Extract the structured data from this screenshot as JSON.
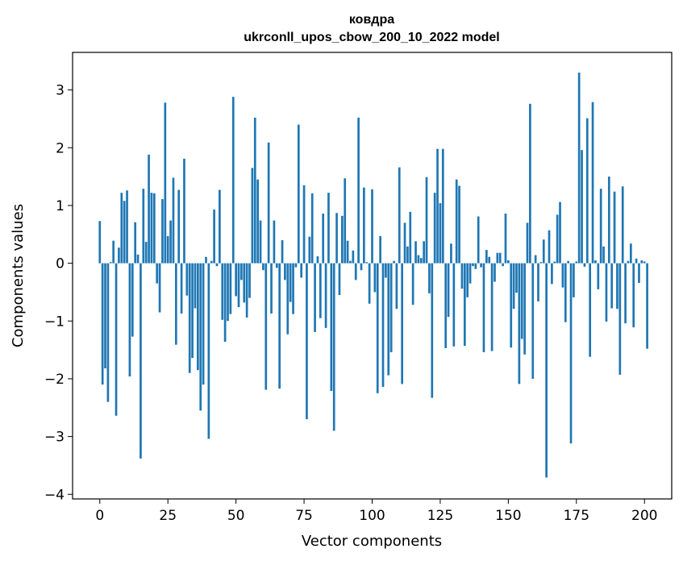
{
  "chart_data": {
    "type": "bar",
    "title": "ковдра",
    "subtitle": "ukrconll_upos_cbow_200_10_2022 model",
    "xlabel": "Vector components",
    "ylabel": "Components values",
    "xlim": [
      -10,
      210
    ],
    "ylim": [
      -4.08,
      3.65
    ],
    "x_ticks": [
      0,
      25,
      50,
      75,
      100,
      125,
      150,
      175,
      200
    ],
    "y_ticks": [
      -4,
      -3,
      -2,
      -1,
      0,
      1,
      2,
      3
    ],
    "y_tick_labels": [
      "−4",
      "−3",
      "−2",
      "−1",
      "0",
      "1",
      "2",
      "3"
    ],
    "bar_color": "#1f77b4",
    "grid": false,
    "values": [
      0.73,
      -2.1,
      -1.82,
      -2.4,
      0.02,
      0.39,
      -2.64,
      0.27,
      1.22,
      1.08,
      1.26,
      -1.96,
      -1.27,
      0.71,
      0.15,
      -3.38,
      1.29,
      0.37,
      1.88,
      1.22,
      1.21,
      -0.35,
      -0.85,
      1.11,
      2.78,
      0.47,
      0.74,
      1.48,
      -1.41,
      1.27,
      -0.87,
      1.81,
      -0.56,
      -1.9,
      -1.64,
      -0.78,
      -1.85,
      -2.55,
      -2.1,
      0.11,
      -3.04,
      0.04,
      0.93,
      -0.05,
      1.27,
      -0.98,
      -1.36,
      -1.0,
      -0.88,
      2.88,
      -0.57,
      -0.76,
      -0.29,
      -0.68,
      -0.94,
      -0.6,
      1.65,
      2.52,
      1.45,
      0.74,
      -0.12,
      -2.19,
      2.09,
      -0.87,
      0.74,
      -0.08,
      -2.17,
      0.4,
      -0.29,
      -1.23,
      -0.67,
      -0.88,
      -0.07,
      2.4,
      -0.25,
      1.35,
      -2.7,
      0.46,
      1.21,
      -1.19,
      0.12,
      -0.95,
      0.86,
      -1.12,
      1.22,
      -2.21,
      -2.9,
      0.87,
      -0.55,
      0.82,
      1.47,
      0.39,
      0.04,
      0.22,
      -0.29,
      2.52,
      -0.12,
      1.31,
      0.02,
      -0.7,
      1.28,
      -0.5,
      -2.25,
      0.47,
      -2.14,
      -0.25,
      -1.94,
      -1.54,
      0.04,
      -0.79,
      1.66,
      -2.09,
      0.7,
      0.29,
      0.89,
      -0.72,
      0.38,
      0.14,
      0.09,
      0.38,
      1.49,
      -0.52,
      -2.33,
      1.22,
      1.98,
      1.04,
      1.98,
      -1.47,
      -0.93,
      0.34,
      -1.44,
      1.45,
      1.34,
      -0.44,
      -1.43,
      -0.59,
      -0.35,
      -0.05,
      -0.1,
      0.81,
      -0.07,
      -1.54,
      0.23,
      0.11,
      -1.52,
      -0.32,
      0.18,
      0.18,
      -0.05,
      0.86,
      0.05,
      -1.46,
      -0.79,
      -0.51,
      -2.09,
      -1.31,
      -1.58,
      0.7,
      2.76,
      -2.0,
      0.14,
      -0.66,
      0.02,
      0.41,
      -3.71,
      0.57,
      -0.36,
      0.03,
      0.84,
      1.06,
      -0.42,
      -1.02,
      0.04,
      -3.12,
      -0.59,
      0.03,
      3.3,
      1.96,
      -0.06,
      2.51,
      -1.62,
      2.79,
      0.05,
      -0.45,
      1.29,
      0.29,
      -1.01,
      1.5,
      -0.78,
      1.24,
      -0.79,
      -1.93,
      1.33,
      -1.04,
      0.04,
      0.34,
      -1.11,
      0.08,
      -0.34,
      0.05,
      0.03,
      -1.48
    ]
  }
}
